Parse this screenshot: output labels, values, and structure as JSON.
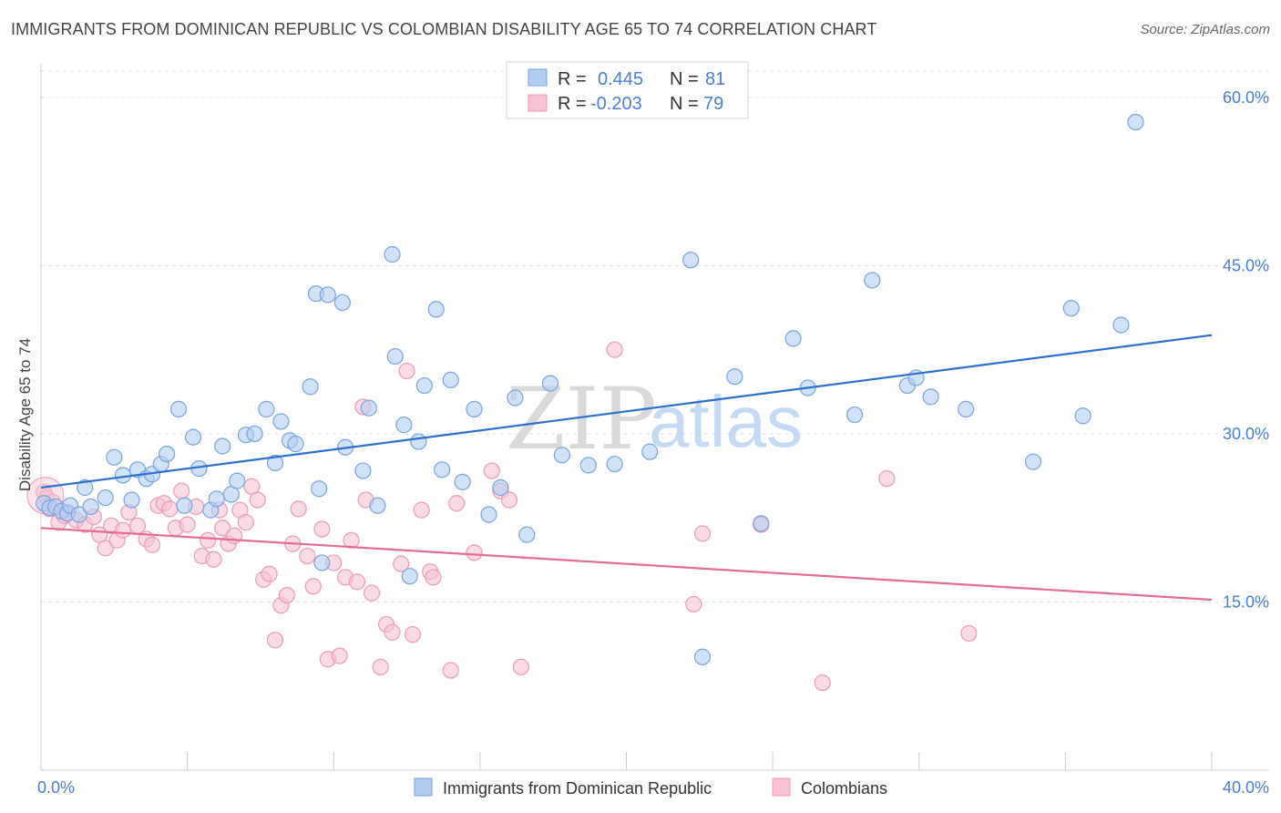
{
  "title": "IMMIGRANTS FROM DOMINICAN REPUBLIC VS COLOMBIAN DISABILITY AGE 65 TO 74 CORRELATION CHART",
  "source": "Source: ZipAtlas.com",
  "watermark": {
    "zip": "ZIP",
    "atlas": "atlas"
  },
  "legend_top": [
    {
      "r_label": "R =",
      "r_value": "0.445",
      "n_label": "N =",
      "n_value": "81"
    },
    {
      "r_label": "R =",
      "r_value": "-0.203",
      "n_label": "N =",
      "n_value": "79"
    }
  ],
  "legend_bottom": [
    {
      "label": "Immigrants from Dominican Republic"
    },
    {
      "label": "Colombians"
    }
  ],
  "chart_data": {
    "type": "scatter",
    "ylabel": "Disability Age 65 to 74",
    "xlim": [
      0,
      40
    ],
    "ylim": [
      0,
      63
    ],
    "x_tick_labels": [
      {
        "value": 0,
        "label": "0.0%"
      },
      {
        "value": 40,
        "label": "40.0%"
      }
    ],
    "y_tick_labels": [
      {
        "value": 15,
        "label": "15.0%"
      },
      {
        "value": 30,
        "label": "30.0%"
      },
      {
        "value": 45,
        "label": "45.0%"
      },
      {
        "value": 60,
        "label": "60.0%"
      }
    ],
    "grid": true,
    "colors": {
      "blue_fill": "#b3cdf2",
      "blue_stroke": "#7aa3e0",
      "blue_line": "#2c6fd1",
      "pink_fill": "#f7c3d4",
      "pink_stroke": "#ec9ab5",
      "pink_line": "#e56b95"
    },
    "series": [
      {
        "name": "Immigrants from Dominican Republic",
        "color": "blue",
        "trend": {
          "x": [
            0,
            40
          ],
          "y": [
            25.2,
            38.8
          ]
        },
        "points": [
          [
            0.1,
            23.8
          ],
          [
            0.3,
            23.4
          ],
          [
            0.5,
            23.5
          ],
          [
            0.7,
            23.1
          ],
          [
            0.9,
            22.9
          ],
          [
            1.0,
            23.6
          ],
          [
            1.3,
            22.8
          ],
          [
            1.5,
            25.2
          ],
          [
            1.7,
            23.5
          ],
          [
            2.2,
            24.3
          ],
          [
            2.5,
            27.9
          ],
          [
            2.8,
            26.3
          ],
          [
            3.1,
            24.1
          ],
          [
            3.3,
            26.8
          ],
          [
            3.6,
            26.0
          ],
          [
            3.8,
            26.4
          ],
          [
            4.1,
            27.3
          ],
          [
            4.3,
            28.2
          ],
          [
            4.7,
            32.2
          ],
          [
            4.9,
            23.6
          ],
          [
            5.2,
            29.7
          ],
          [
            5.4,
            26.9
          ],
          [
            5.8,
            23.2
          ],
          [
            6.0,
            24.2
          ],
          [
            6.2,
            28.9
          ],
          [
            6.5,
            24.6
          ],
          [
            6.7,
            25.8
          ],
          [
            7.0,
            29.9
          ],
          [
            7.3,
            30.0
          ],
          [
            7.7,
            32.2
          ],
          [
            8.0,
            27.4
          ],
          [
            8.2,
            31.1
          ],
          [
            8.5,
            29.4
          ],
          [
            8.7,
            29.1
          ],
          [
            9.2,
            34.2
          ],
          [
            9.5,
            25.1
          ],
          [
            9.6,
            18.5
          ],
          [
            9.4,
            42.5
          ],
          [
            9.8,
            42.4
          ],
          [
            10.3,
            41.7
          ],
          [
            10.4,
            28.8
          ],
          [
            11.0,
            26.7
          ],
          [
            11.2,
            32.3
          ],
          [
            11.5,
            23.6
          ],
          [
            12.0,
            46.0
          ],
          [
            12.1,
            36.9
          ],
          [
            12.4,
            30.8
          ],
          [
            12.6,
            17.3
          ],
          [
            12.9,
            29.3
          ],
          [
            13.1,
            34.3
          ],
          [
            13.5,
            41.1
          ],
          [
            13.7,
            26.8
          ],
          [
            14.0,
            34.8
          ],
          [
            14.4,
            25.7
          ],
          [
            14.8,
            32.2
          ],
          [
            15.3,
            22.8
          ],
          [
            15.7,
            25.2
          ],
          [
            16.2,
            33.2
          ],
          [
            16.6,
            21.0
          ],
          [
            17.4,
            34.5
          ],
          [
            17.8,
            28.1
          ],
          [
            18.7,
            27.2
          ],
          [
            19.6,
            27.3
          ],
          [
            20.8,
            28.4
          ],
          [
            22.2,
            45.5
          ],
          [
            22.6,
            10.1
          ],
          [
            23.7,
            35.1
          ],
          [
            24.6,
            22.0
          ],
          [
            25.7,
            38.5
          ],
          [
            26.2,
            34.1
          ],
          [
            27.8,
            31.7
          ],
          [
            28.4,
            43.7
          ],
          [
            29.6,
            34.3
          ],
          [
            29.9,
            35.0
          ],
          [
            30.4,
            33.3
          ],
          [
            31.6,
            32.2
          ],
          [
            33.9,
            27.5
          ],
          [
            35.2,
            41.2
          ],
          [
            35.6,
            31.6
          ],
          [
            36.9,
            39.7
          ],
          [
            37.4,
            57.8
          ]
        ]
      },
      {
        "name": "Colombians",
        "color": "pink",
        "trend": {
          "x": [
            0,
            40
          ],
          "y": [
            21.6,
            15.2
          ]
        },
        "points": [
          [
            0.1,
            24.8
          ],
          [
            0.3,
            23.3
          ],
          [
            0.6,
            22.1
          ],
          [
            0.9,
            23.0
          ],
          [
            1.2,
            22.3
          ],
          [
            1.5,
            21.9
          ],
          [
            1.8,
            22.6
          ],
          [
            2.0,
            21.0
          ],
          [
            2.2,
            19.8
          ],
          [
            2.4,
            21.8
          ],
          [
            2.6,
            20.5
          ],
          [
            2.8,
            21.4
          ],
          [
            3.0,
            23.0
          ],
          [
            3.3,
            21.8
          ],
          [
            3.6,
            20.6
          ],
          [
            3.8,
            20.1
          ],
          [
            4.0,
            23.6
          ],
          [
            4.2,
            23.8
          ],
          [
            4.4,
            23.3
          ],
          [
            4.6,
            21.6
          ],
          [
            4.8,
            24.9
          ],
          [
            5.0,
            21.9
          ],
          [
            5.3,
            23.5
          ],
          [
            5.5,
            19.1
          ],
          [
            5.7,
            20.5
          ],
          [
            5.9,
            18.8
          ],
          [
            6.1,
            23.2
          ],
          [
            6.2,
            21.6
          ],
          [
            6.4,
            20.2
          ],
          [
            6.6,
            20.9
          ],
          [
            6.8,
            23.2
          ],
          [
            7.0,
            22.1
          ],
          [
            7.2,
            25.3
          ],
          [
            7.4,
            24.1
          ],
          [
            7.6,
            17.0
          ],
          [
            7.8,
            17.5
          ],
          [
            8.0,
            11.6
          ],
          [
            8.2,
            14.7
          ],
          [
            8.4,
            15.6
          ],
          [
            8.6,
            20.2
          ],
          [
            8.8,
            23.3
          ],
          [
            9.1,
            19.1
          ],
          [
            9.3,
            16.4
          ],
          [
            9.6,
            21.5
          ],
          [
            9.8,
            9.9
          ],
          [
            10.0,
            18.5
          ],
          [
            10.2,
            10.2
          ],
          [
            10.4,
            17.2
          ],
          [
            10.6,
            20.5
          ],
          [
            10.8,
            16.8
          ],
          [
            11.0,
            32.4
          ],
          [
            11.1,
            24.1
          ],
          [
            11.3,
            15.8
          ],
          [
            11.6,
            9.2
          ],
          [
            11.8,
            13.0
          ],
          [
            12.0,
            12.3
          ],
          [
            12.3,
            18.4
          ],
          [
            12.5,
            35.6
          ],
          [
            12.7,
            12.1
          ],
          [
            13.0,
            23.2
          ],
          [
            13.3,
            17.7
          ],
          [
            13.4,
            17.2
          ],
          [
            14.0,
            8.9
          ],
          [
            14.2,
            23.8
          ],
          [
            14.8,
            19.4
          ],
          [
            15.4,
            26.7
          ],
          [
            15.7,
            24.9
          ],
          [
            16.0,
            24.1
          ],
          [
            16.4,
            9.2
          ],
          [
            19.6,
            37.5
          ],
          [
            22.3,
            14.8
          ],
          [
            22.6,
            21.1
          ],
          [
            24.6,
            21.9
          ],
          [
            26.7,
            7.8
          ],
          [
            28.9,
            26.0
          ],
          [
            31.7,
            12.2
          ],
          [
            0.2,
            24.3
          ],
          [
            0.4,
            23.9
          ],
          [
            0.8,
            22.7
          ]
        ]
      }
    ]
  }
}
